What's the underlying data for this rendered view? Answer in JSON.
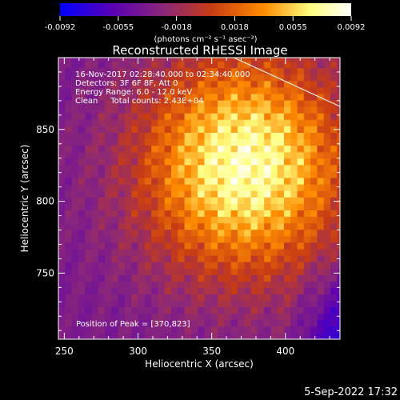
{
  "chart_data": {
    "type": "heatmap",
    "title": "Reconstructed RHESSI Image",
    "xlabel": "Heliocentric X (arcsec)",
    "ylabel": "Heliocentric Y (arcsec)",
    "xlim": [
      246,
      437
    ],
    "ylim": [
      704,
      900
    ],
    "x_ticks": [
      250,
      300,
      350,
      400
    ],
    "y_ticks": [
      750,
      800,
      850
    ],
    "colorbar": {
      "ticks": [
        "-0.0092",
        "-0.0055",
        "-0.0018",
        "0.0018",
        "0.0055",
        "0.0092"
      ],
      "range": [
        -0.0092,
        0.0092
      ],
      "units": "(photons cm⁻² s⁻¹ asec⁻²)",
      "colors": [
        "#0000ff",
        "#5a00b4",
        "#8c2878",
        "#c83c14",
        "#ff8c00",
        "#ffff80",
        "#ffffff"
      ]
    },
    "annotations": {
      "time": "16-Nov-2017 02:28:40.000 to 02:34:40.000",
      "detectors": "Detectors: 3F 6F 8F, Att 0",
      "energy": "Energy Range: 6.0 - 12.0 keV",
      "clean": "Clean     Total counts: 2.43E+04",
      "peak": "Position of Peak = [370,823]"
    },
    "peak": [
      370,
      823
    ],
    "limb_line": [
      [
        365,
        900
      ],
      [
        437,
        866
      ]
    ]
  },
  "footer": {
    "date": "5-Sep-2022 17:32"
  }
}
